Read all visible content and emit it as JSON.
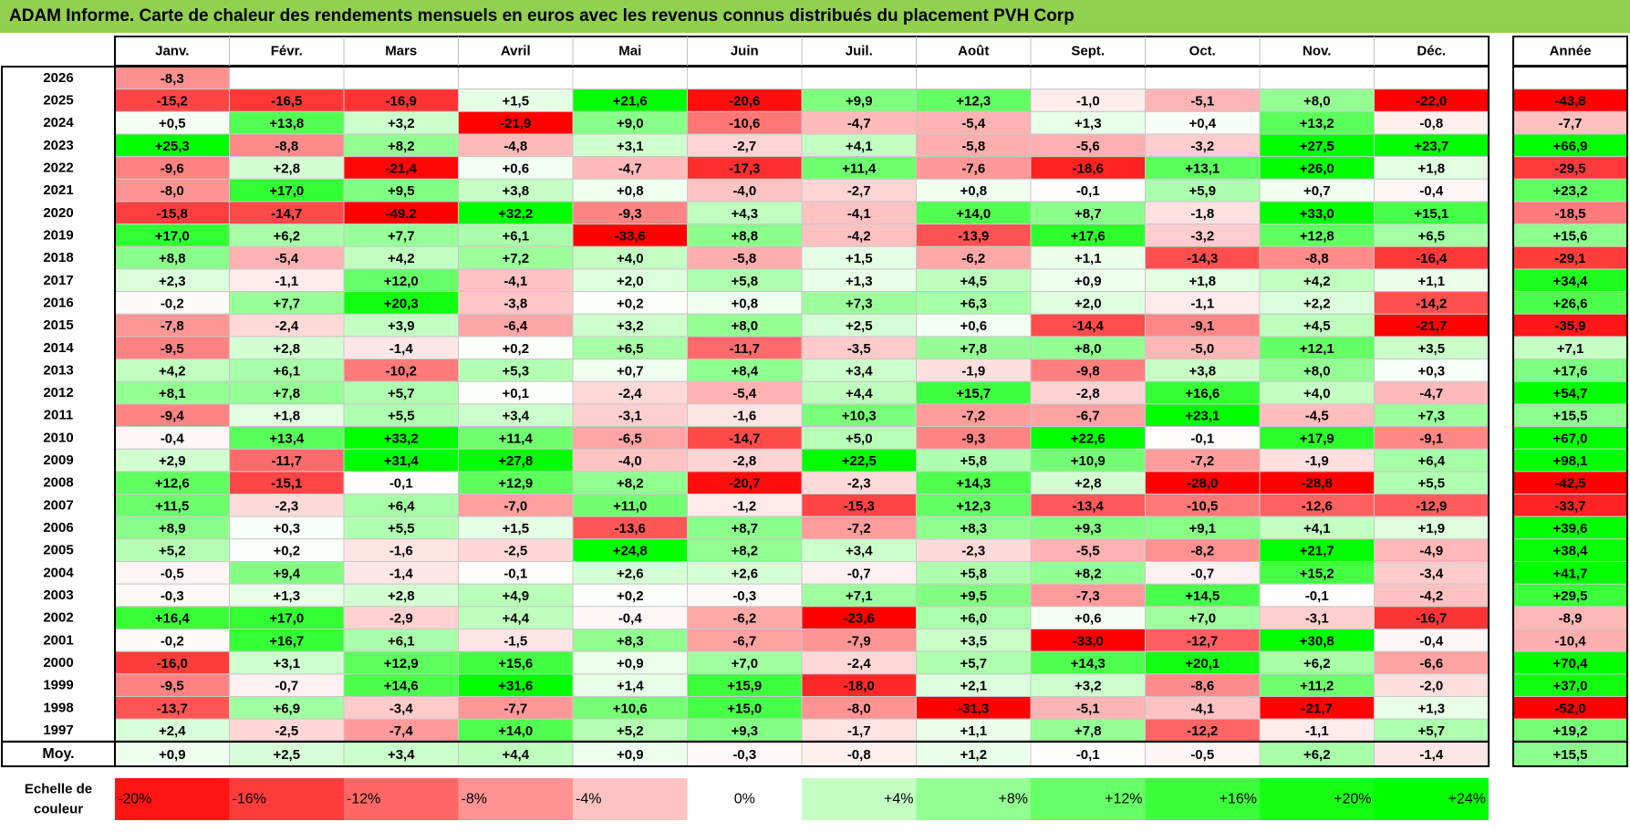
{
  "title": "ADAM Informe. Carte de chaleur des rendements mensuels en euros avec les revenus connus distribués du placement PVH Corp",
  "colors": {
    "title_bg": "#92d050",
    "neg_max": "#ff0000",
    "pos_max": "#00ff00",
    "neutral": "#ffffff"
  },
  "chart_data": {
    "type": "heatmap",
    "months": [
      "Janv.",
      "Févr.",
      "Mars",
      "Avril",
      "Mai",
      "Juin",
      "Juil.",
      "Août",
      "Sept.",
      "Oct.",
      "Nov.",
      "Déc."
    ],
    "year_header": "Année",
    "rows": [
      {
        "year": "2026",
        "values": [
          "-8,3",
          null,
          null,
          null,
          null,
          null,
          null,
          null,
          null,
          null,
          null,
          null
        ],
        "annual": null
      },
      {
        "year": "2025",
        "values": [
          "-15,2",
          "-16,5",
          "-16,9",
          "+1,5",
          "+21,6",
          "-20,6",
          "+9,9",
          "+12,3",
          "-1,0",
          "-5,1",
          "+8,0",
          "-22,0"
        ],
        "annual": "-43,8"
      },
      {
        "year": "2024",
        "values": [
          "+0,5",
          "+13,8",
          "+3,2",
          "-21,9",
          "+9,0",
          "-10,6",
          "-4,7",
          "-5,4",
          "+1,3",
          "+0,4",
          "+13,2",
          "-0,8"
        ],
        "annual": "-7,7"
      },
      {
        "year": "2023",
        "values": [
          "+25,3",
          "-8,8",
          "+8,2",
          "-4,8",
          "+3,1",
          "-2,7",
          "+4,1",
          "-5,8",
          "-5,6",
          "-3,2",
          "+27,5",
          "+23,7"
        ],
        "annual": "+66,9"
      },
      {
        "year": "2022",
        "values": [
          "-9,6",
          "+2,8",
          "-21,4",
          "+0,6",
          "-4,7",
          "-17,3",
          "+11,4",
          "-7,6",
          "-18,6",
          "+13,1",
          "+26,0",
          "+1,8"
        ],
        "annual": "-29,5"
      },
      {
        "year": "2021",
        "values": [
          "-8,0",
          "+17,0",
          "+9,5",
          "+3,8",
          "+0,8",
          "-4,0",
          "-2,7",
          "+0,8",
          "-0,1",
          "+5,9",
          "+0,7",
          "-0,4"
        ],
        "annual": "+23,2"
      },
      {
        "year": "2020",
        "values": [
          "-15,8",
          "-14,7",
          "-49,2",
          "+32,2",
          "-9,3",
          "+4,3",
          "-4,1",
          "+14,0",
          "+8,7",
          "-1,8",
          "+33,0",
          "+15,1"
        ],
        "annual": "-18,5"
      },
      {
        "year": "2019",
        "values": [
          "+17,0",
          "+6,2",
          "+7,7",
          "+6,1",
          "-33,6",
          "+8,8",
          "-4,2",
          "-13,9",
          "+17,6",
          "-3,2",
          "+12,8",
          "+6,5"
        ],
        "annual": "+15,6"
      },
      {
        "year": "2018",
        "values": [
          "+8,8",
          "-5,4",
          "+4,2",
          "+7,2",
          "+4,0",
          "-5,8",
          "+1,5",
          "-6,2",
          "+1,1",
          "-14,3",
          "-8,8",
          "-16,4"
        ],
        "annual": "-29,1"
      },
      {
        "year": "2017",
        "values": [
          "+2,3",
          "-1,1",
          "+12,0",
          "-4,1",
          "+2,0",
          "+5,8",
          "+1,3",
          "+4,5",
          "+0,9",
          "+1,8",
          "+4,2",
          "+1,1"
        ],
        "annual": "+34,4"
      },
      {
        "year": "2016",
        "values": [
          "-0,2",
          "+7,7",
          "+20,3",
          "-3,8",
          "+0,2",
          "+0,8",
          "+7,3",
          "+6,3",
          "+2,0",
          "-1,1",
          "+2,2",
          "-14,2"
        ],
        "annual": "+26,6"
      },
      {
        "year": "2015",
        "values": [
          "-7,8",
          "-2,4",
          "+3,9",
          "-6,4",
          "+3,2",
          "+8,0",
          "+2,5",
          "+0,6",
          "-14,4",
          "-9,1",
          "+4,5",
          "-21,7"
        ],
        "annual": "-35,9"
      },
      {
        "year": "2014",
        "values": [
          "-9,5",
          "+2,8",
          "-1,4",
          "+0,2",
          "+6,5",
          "-11,7",
          "-3,5",
          "+7,8",
          "+8,0",
          "-5,0",
          "+12,1",
          "+3,5"
        ],
        "annual": "+7,1"
      },
      {
        "year": "2013",
        "values": [
          "+4,2",
          "+6,1",
          "-10,2",
          "+5,3",
          "+0,7",
          "+8,4",
          "+3,4",
          "-1,9",
          "-9,8",
          "+3,8",
          "+8,0",
          "+0,3"
        ],
        "annual": "+17,6"
      },
      {
        "year": "2012",
        "values": [
          "+8,1",
          "+7,8",
          "+5,7",
          "+0,1",
          "-2,4",
          "-5,4",
          "+4,4",
          "+15,7",
          "-2,8",
          "+16,6",
          "+4,0",
          "-4,7"
        ],
        "annual": "+54,7"
      },
      {
        "year": "2011",
        "values": [
          "-9,4",
          "+1,8",
          "+5,5",
          "+3,4",
          "-3,1",
          "-1,6",
          "+10,3",
          "-7,2",
          "-6,7",
          "+23,1",
          "-4,5",
          "+7,3"
        ],
        "annual": "+15,5"
      },
      {
        "year": "2010",
        "values": [
          "-0,4",
          "+13,4",
          "+33,2",
          "+11,4",
          "-6,5",
          "-14,7",
          "+5,0",
          "-9,3",
          "+22,6",
          "-0,1",
          "+17,9",
          "-9,1"
        ],
        "annual": "+67,0"
      },
      {
        "year": "2009",
        "values": [
          "+2,9",
          "-11,7",
          "+31,4",
          "+27,8",
          "-4,0",
          "-2,8",
          "+22,5",
          "+5,8",
          "+10,9",
          "-7,2",
          "-1,9",
          "+6,4"
        ],
        "annual": "+98,1"
      },
      {
        "year": "2008",
        "values": [
          "+12,6",
          "-15,1",
          "-0,1",
          "+12,9",
          "+8,2",
          "-20,7",
          "-2,3",
          "+14,3",
          "+2,8",
          "-28,0",
          "-28,8",
          "+5,5"
        ],
        "annual": "-42,5"
      },
      {
        "year": "2007",
        "values": [
          "+11,5",
          "-2,3",
          "+6,4",
          "-7,0",
          "+11,0",
          "-1,2",
          "-15,3",
          "+12,3",
          "-13,4",
          "-10,5",
          "-12,6",
          "-12,9"
        ],
        "annual": "-33,7"
      },
      {
        "year": "2006",
        "values": [
          "+8,9",
          "+0,3",
          "+5,5",
          "+1,5",
          "-13,6",
          "+8,7",
          "-7,2",
          "+8,3",
          "+9,3",
          "+9,1",
          "+4,1",
          "+1,9"
        ],
        "annual": "+39,6"
      },
      {
        "year": "2005",
        "values": [
          "+5,2",
          "+0,2",
          "-1,6",
          "-2,5",
          "+24,8",
          "+8,2",
          "+3,4",
          "-2,3",
          "-5,5",
          "-8,2",
          "+21,7",
          "-4,9"
        ],
        "annual": "+38,4"
      },
      {
        "year": "2004",
        "values": [
          "-0,5",
          "+9,4",
          "-1,4",
          "-0,1",
          "+2,6",
          "+2,6",
          "-0,7",
          "+5,8",
          "+8,2",
          "-0,7",
          "+15,2",
          "-3,4"
        ],
        "annual": "+41,7"
      },
      {
        "year": "2003",
        "values": [
          "-0,3",
          "+1,3",
          "+2,8",
          "+4,9",
          "+0,2",
          "-0,3",
          "+7,1",
          "+9,5",
          "-7,3",
          "+14,5",
          "-0,1",
          "-4,2"
        ],
        "annual": "+29,5"
      },
      {
        "year": "2002",
        "values": [
          "+16,4",
          "+17,0",
          "-2,9",
          "+4,4",
          "-0,4",
          "-6,2",
          "-23,6",
          "+6,0",
          "+0,6",
          "+7,0",
          "-3,1",
          "-16,7"
        ],
        "annual": "-8,9"
      },
      {
        "year": "2001",
        "values": [
          "-0,2",
          "+16,7",
          "+6,1",
          "-1,5",
          "+8,3",
          "-6,7",
          "-7,9",
          "+3,5",
          "-33,0",
          "-12,7",
          "+30,8",
          "-0,4"
        ],
        "annual": "-10,4"
      },
      {
        "year": "2000",
        "values": [
          "-16,0",
          "+3,1",
          "+12,9",
          "+15,6",
          "+0,9",
          "+7,0",
          "-2,4",
          "+5,7",
          "+14,3",
          "+20,1",
          "+6,2",
          "-6,6"
        ],
        "annual": "+70,4"
      },
      {
        "year": "1999",
        "values": [
          "-9,5",
          "-0,7",
          "+14,6",
          "+31,6",
          "+1,4",
          "+15,9",
          "-18,0",
          "+2,1",
          "+3,2",
          "-8,6",
          "+11,2",
          "-2,0"
        ],
        "annual": "+37,0"
      },
      {
        "year": "1998",
        "values": [
          "-13,7",
          "+6,9",
          "-3,4",
          "-7,7",
          "+10,6",
          "+15,0",
          "-8,0",
          "-31,3",
          "-5,1",
          "-4,1",
          "-21,7",
          "+1,3"
        ],
        "annual": "-52,0"
      },
      {
        "year": "1997",
        "values": [
          "+2,4",
          "-2,5",
          "-7,4",
          "+14,0",
          "+5,2",
          "+9,3",
          "-1,7",
          "+1,1",
          "+7,8",
          "-12,2",
          "-1,1",
          "+5,7"
        ],
        "annual": "+19,2"
      }
    ],
    "average": {
      "label": "Moy.",
      "values": [
        "+0,9",
        "+2,5",
        "+3,4",
        "+4,4",
        "+0,9",
        "-0,3",
        "-0,8",
        "+1,2",
        "-0,1",
        "-0,5",
        "+6,2",
        "-1,4"
      ],
      "annual": "+15,5"
    },
    "scale": {
      "label_line1": "Echelle de",
      "label_line2": "couleur",
      "steps": [
        "-20%",
        "-16%",
        "-12%",
        "-8%",
        "-4%",
        "0%",
        "+4%",
        "+8%",
        "+12%",
        "+16%",
        "+20%",
        "+24%"
      ],
      "step_values": [
        -20,
        -16,
        -12,
        -8,
        -4,
        0,
        4,
        8,
        12,
        16,
        20,
        24
      ]
    }
  }
}
